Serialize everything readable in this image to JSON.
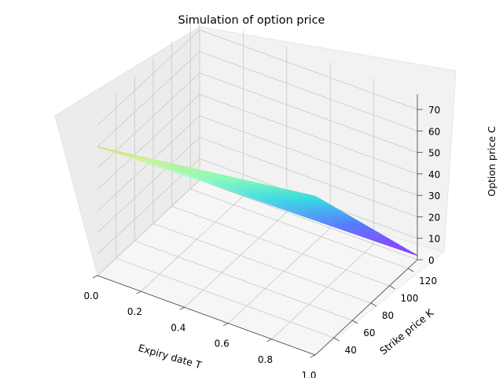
{
  "chart_data": {
    "type": "surface3d",
    "title": "Simulation of option price",
    "xlabel": "Expiry date T",
    "ylabel": "Strike price K",
    "zlabel": "Option price C",
    "xlim": [
      0.0,
      1.0
    ],
    "ylim": [
      20,
      130
    ],
    "zlim": [
      0,
      77
    ],
    "xticks": [
      "0.0",
      "0.2",
      "0.4",
      "0.6",
      "0.8",
      "1.0"
    ],
    "yticks": [
      "40",
      "60",
      "80",
      "100",
      "120"
    ],
    "zticks": [
      "0",
      "10",
      "20",
      "30",
      "40",
      "50",
      "60",
      "70"
    ],
    "colormap": "rainbow",
    "surface": {
      "T": [
        0.0,
        1.0
      ],
      "K": [
        20,
        130
      ],
      "C": [
        [
          60,
          74
        ],
        [
          0,
          2
        ]
      ]
    },
    "grid": true
  }
}
